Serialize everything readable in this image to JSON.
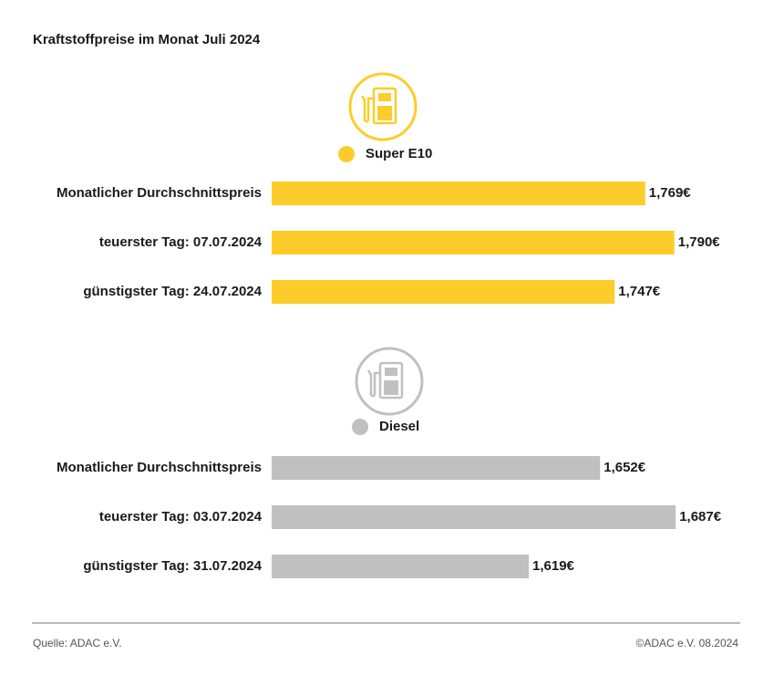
{
  "title": "Kraftstoffpreise im Monat Juli 2024",
  "chart_data": [
    {
      "type": "bar",
      "orientation": "horizontal",
      "categories": [
        "Monatlicher Durchschnittspreis",
        "teuerster Tag: 07.07.2024",
        "günstigster Tag: 24.07.2024"
      ],
      "series": [
        {
          "name": "Super E10",
          "color": "#fccd2a",
          "values": [
            1.769,
            1.79,
            1.747
          ],
          "value_labels": [
            "1,769€",
            "1,790€",
            "1,747€"
          ]
        }
      ],
      "xlim": [
        1.5,
        1.8
      ]
    },
    {
      "type": "bar",
      "orientation": "horizontal",
      "categories": [
        "Monatlicher Durchschnittspreis",
        "teuerster Tag: 03.07.2024",
        "günstigster Tag: 31.07.2024"
      ],
      "series": [
        {
          "name": "Diesel",
          "color": "#c0c0c0",
          "values": [
            1.652,
            1.687,
            1.619
          ],
          "value_labels": [
            "1,652€",
            "1,687€",
            "1,619€"
          ]
        }
      ],
      "xlim": [
        1.5,
        1.7
      ]
    }
  ],
  "source": "Quelle: ADAC e.V.",
  "copyright": "©ADAC e.V. 08.2024"
}
